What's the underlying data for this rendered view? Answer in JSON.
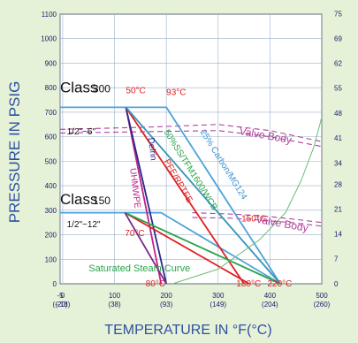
{
  "chart_data": {
    "type": "line",
    "xlabel": "TEMPERATURE IN °F(°C)",
    "ylabel": "PRESSURE IN PSIG",
    "xlim": [
      -5,
      500
    ],
    "ylim": [
      0,
      1100
    ],
    "y2lim": [
      0,
      75.8
    ],
    "grid": true,
    "x_ticks": [
      {
        "v": -5,
        "l": "-5",
        "c": "(-20)"
      },
      {
        "v": 0,
        "l": "0",
        "c": "(-18)"
      },
      {
        "v": 100,
        "l": "100",
        "c": "(38)"
      },
      {
        "v": 200,
        "l": "200",
        "c": "(93)"
      },
      {
        "v": 300,
        "l": "300",
        "c": "(149)"
      },
      {
        "v": 400,
        "l": "400",
        "c": "(204)"
      },
      {
        "v": 500,
        "l": "500",
        "c": "(260)"
      }
    ],
    "y_ticks": [
      0,
      100,
      200,
      300,
      400,
      500,
      600,
      700,
      800,
      900,
      1000,
      1100
    ],
    "y2_ticks": [
      {
        "v": 0,
        "l": "0"
      },
      {
        "v": 103,
        "l": "7"
      },
      {
        "v": 203,
        "l": "14"
      },
      {
        "v": 305,
        "l": "21"
      },
      {
        "v": 406,
        "l": "28"
      },
      {
        "v": 493,
        "l": "34"
      },
      {
        "v": 595,
        "l": "41"
      },
      {
        "v": 696,
        "l": "48"
      },
      {
        "v": 798,
        "l": "55"
      },
      {
        "v": 899,
        "l": "62"
      },
      {
        "v": 1001,
        "l": "69"
      },
      {
        "v": 1102,
        "l": "75"
      }
    ],
    "series": [
      {
        "name": "Class 300",
        "color": "#4da3d8",
        "width": 1.8,
        "points": [
          [
            -5,
            720
          ],
          [
            200,
            720
          ],
          [
            420,
            0
          ]
        ]
      },
      {
        "name": "Class 150",
        "color": "#4da3d8",
        "width": 1.8,
        "points": [
          [
            -5,
            290
          ],
          [
            190,
            290
          ],
          [
            420,
            0
          ]
        ]
      },
      {
        "name": "UHMWPE",
        "color": "#c0208a",
        "width": 1.8,
        "points": [
          [
            122,
            720
          ],
          [
            190,
            0
          ]
        ]
      },
      {
        "name": "Delrin",
        "color": "#2a2a8a",
        "width": 1.8,
        "points": [
          [
            122,
            720
          ],
          [
            200,
            0
          ]
        ]
      },
      {
        "name": "PFE/RPTFE",
        "color": "#e02020",
        "width": 1.8,
        "points": [
          [
            122,
            720
          ],
          [
            350,
            0
          ]
        ]
      },
      {
        "name": "50%SS/TFM1600/WCB",
        "color": "#2aa24a",
        "width": 1.8,
        "points": [
          [
            122,
            720
          ],
          [
            420,
            0
          ]
        ]
      },
      {
        "name": "25% Carbon/MG124",
        "color": "#3c96d2",
        "width": 1.5,
        "points": [
          [
            122,
            720
          ],
          [
            420,
            0
          ]
        ]
      },
      {
        "name": "Red (150)",
        "color": "#e02020",
        "width": 1.8,
        "points": [
          [
            120,
            290
          ],
          [
            360,
            0
          ]
        ]
      },
      {
        "name": "Green (150)",
        "color": "#2aa24a",
        "width": 1.8,
        "points": [
          [
            120,
            290
          ],
          [
            420,
            0
          ]
        ]
      },
      {
        "name": "Purple (150)",
        "color": "#7a2a8a",
        "width": 1.8,
        "points": [
          [
            120,
            290
          ],
          [
            200,
            0
          ]
        ]
      },
      {
        "name": "Saturated Steam Curve",
        "color": "#6dbb7a",
        "width": 1.0,
        "points": [
          [
            212,
            0
          ],
          [
            300,
            60
          ],
          [
            380,
            180
          ],
          [
            430,
            290
          ],
          [
            460,
            420
          ],
          [
            485,
            560
          ],
          [
            500,
            680
          ]
        ]
      }
    ],
    "envelopes": [
      {
        "color": "#b0409a",
        "points": [
          [
            -5,
            630
          ],
          [
            150,
            638
          ],
          [
            300,
            650
          ],
          [
            400,
            625
          ],
          [
            500,
            580
          ]
        ]
      },
      {
        "color": "#b0409a",
        "points": [
          [
            -5,
            615
          ],
          [
            150,
            620
          ],
          [
            300,
            625
          ],
          [
            400,
            600
          ],
          [
            500,
            560
          ]
        ]
      },
      {
        "color": "#b0409a",
        "points": [
          [
            250,
            290
          ],
          [
            320,
            285
          ],
          [
            380,
            278
          ],
          [
            440,
            265
          ],
          [
            500,
            250
          ]
        ]
      },
      {
        "color": "#b0409a",
        "points": [
          [
            250,
            270
          ],
          [
            320,
            268
          ],
          [
            380,
            260
          ],
          [
            440,
            250
          ],
          [
            500,
            235
          ]
        ]
      }
    ],
    "annotations": [
      {
        "text": "Class",
        "x": -5,
        "y": 780,
        "size": 17,
        "color": "#111111"
      },
      {
        "text": "300",
        "x": 58,
        "y": 780,
        "size": 12,
        "color": "#111111"
      },
      {
        "text": "1/2\"~6\"",
        "x": 8,
        "y": 610,
        "size": 10,
        "color": "#111111"
      },
      {
        "text": "Class",
        "x": -5,
        "y": 325,
        "size": 17,
        "color": "#111111"
      },
      {
        "text": "150",
        "x": 58,
        "y": 325,
        "size": 12,
        "color": "#111111"
      },
      {
        "text": "1/2\"~12\"",
        "x": 8,
        "y": 230,
        "size": 10,
        "color": "#111111"
      },
      {
        "text": "50°C",
        "x": 122,
        "y": 778,
        "size": 10,
        "color": "#e02020"
      },
      {
        "text": "93°C",
        "x": 200,
        "y": 770,
        "size": 10,
        "color": "#e02020"
      },
      {
        "text": "70°C",
        "x": 120,
        "y": 195,
        "size": 10,
        "color": "#e02020"
      },
      {
        "text": "150°C",
        "x": 345,
        "y": 255,
        "size": 10,
        "color": "#e02020"
      },
      {
        "text": "80°C",
        "x": 160,
        "y": -10,
        "size": 10,
        "color": "#e02020"
      },
      {
        "text": "180°C",
        "x": 335,
        "y": -10,
        "size": 10,
        "color": "#e02020"
      },
      {
        "text": "220°C",
        "x": 395,
        "y": -10,
        "size": 10,
        "color": "#e02020"
      },
      {
        "text": "Valve Body",
        "x": 340,
        "y": 610,
        "size": 12,
        "color": "#b0409a",
        "rotate": 10
      },
      {
        "text": "Valve Body",
        "x": 372,
        "y": 250,
        "size": 12,
        "color": "#b0409a",
        "rotate": 10
      },
      {
        "text": "Saturated Steam Curve",
        "x": 50,
        "y": 50,
        "size": 11,
        "color": "#2aa24a"
      },
      {
        "text": "UHMWPE",
        "x": 130,
        "y": 470,
        "size": 10,
        "color": "#c0208a",
        "rotate": 83
      },
      {
        "text": "Delrin",
        "x": 165,
        "y": 595,
        "size": 10,
        "color": "#2a2a8a",
        "rotate": 83
      },
      {
        "text": "PFE/RPTFE",
        "x": 195,
        "y": 500,
        "size": 10,
        "color": "#e02020",
        "rotate": 60
      },
      {
        "text": "50%SS/TFM1600/WCB",
        "x": 195,
        "y": 620,
        "size": 10,
        "color": "#2aa24a",
        "rotate": 58
      },
      {
        "text": "25% Carbon/MG124",
        "x": 265,
        "y": 620,
        "size": 10,
        "color": "#3c96d2",
        "rotate": 58
      }
    ]
  }
}
